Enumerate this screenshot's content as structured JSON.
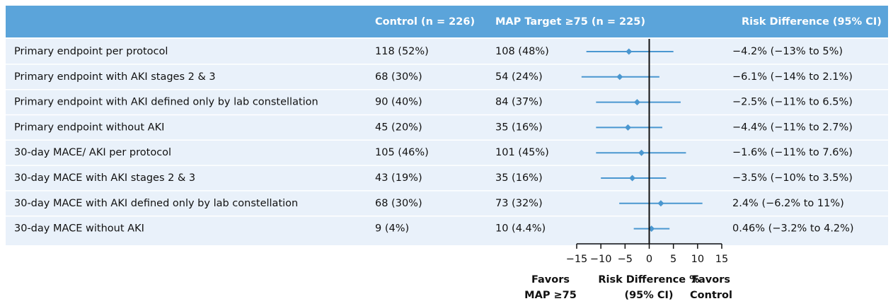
{
  "chart_data": {
    "type": "forest",
    "column_headers": [
      "Control (n = 226)",
      "MAP Target ≥75 (n = 225)",
      "Risk Difference (95% CI)"
    ],
    "categories": [
      "Primary endpoint per protocol",
      "Primary endpoint with AKI stages 2 & 3",
      "Primary endpoint with AKI defined only by lab constellation",
      "Primary endpoint without AKI",
      "30-day MACE/ AKI per protocol",
      "30-day MACE with AKI stages 2 & 3",
      "30-day MACE with AKI defined only by lab constellation",
      "30-day MACE without AKI"
    ],
    "control": [
      "118 (52%)",
      "68 (30%)",
      "90 (40%)",
      "45 (20%)",
      "105 (46%)",
      "43 (19%)",
      "68 (30%)",
      "9 (4%)"
    ],
    "map_target": [
      "108 (48%)",
      "54 (24%)",
      "84 (37%)",
      "35 (16%)",
      "101 (45%)",
      "35 (16%)",
      "73 (32%)",
      "10 (4.4%)"
    ],
    "values": [
      -4.2,
      -6.1,
      -2.5,
      -4.4,
      -1.6,
      -3.5,
      2.4,
      0.46
    ],
    "lower": [
      -13,
      -14,
      -11,
      -11,
      -11,
      -10,
      -6.2,
      -3.2
    ],
    "upper": [
      5,
      2.1,
      6.5,
      2.7,
      7.6,
      3.5,
      11,
      4.2
    ],
    "value_labels": [
      "−4.2% (−13% to 5%)",
      "−6.1% (−14% to 2.1%)",
      "−2.5% (−11% to 6.5%)",
      "−4.4% (−11% to 2.7%)",
      "−1.6% (−11% to 7.6%)",
      "−3.5% (−10% to 3.5%)",
      "2.4% (−6.2% to 11%)",
      "0.46% (−3.2% to 4.2%)"
    ],
    "xlim": [
      -15,
      15
    ],
    "xticks": [
      {
        "value": -15,
        "label": "−15"
      },
      {
        "value": -10,
        "label": "−10"
      },
      {
        "value": -5,
        "label": "−5"
      },
      0,
      5,
      10,
      15
    ],
    "x_label": [
      "Risk Difference %",
      "(95% CI)"
    ],
    "left_note": [
      "Favors",
      "MAP ≥75"
    ],
    "right_note": [
      "Favors",
      "Control"
    ],
    "color": "#4a97d0"
  }
}
